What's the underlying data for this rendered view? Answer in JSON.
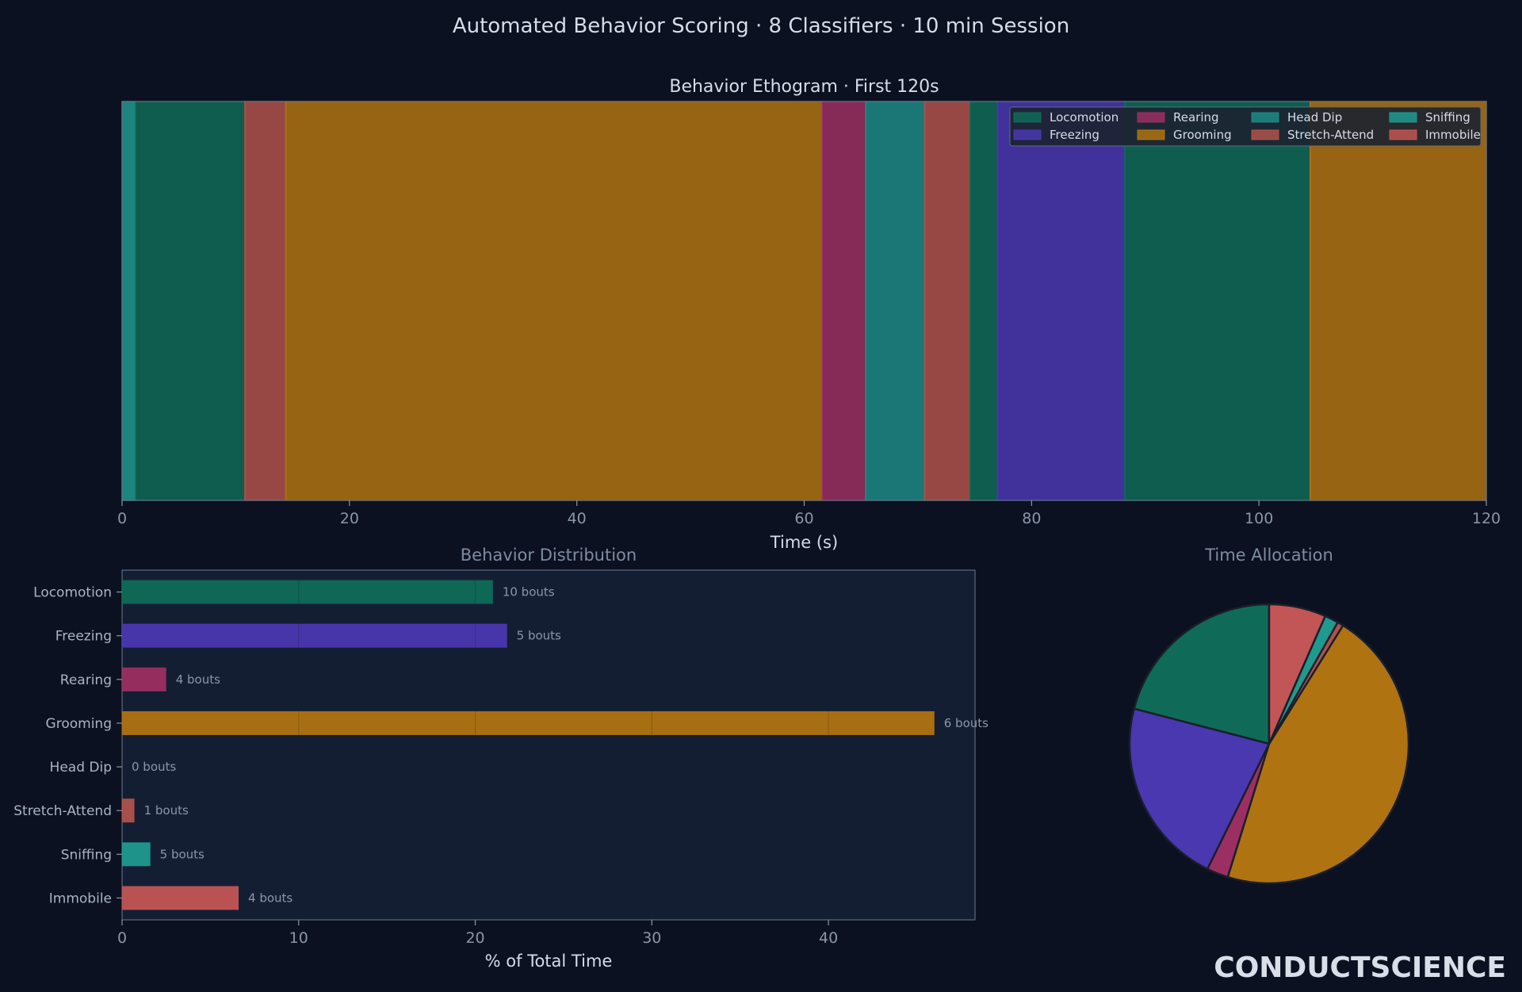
{
  "title": "Automated Behavior Scoring · 8 Classifiers · 10 min Session",
  "logo_text": "CONDUCTSCIENCE",
  "colors": {
    "Locomotion": "#0f6b58",
    "Freezing": "#4a38b0",
    "Rearing": "#9c2f62",
    "Grooming": "#b07312",
    "Head Dip": "#1f8a86",
    "Stretch-Attend": "#b0524c",
    "Sniffing": "#1f9a8f",
    "Immobile": "#c25555"
  },
  "chart_data": [
    {
      "type": "ethogram",
      "title": "Behavior Ethogram · First 120s",
      "xlabel": "Time (s)",
      "xlim": [
        0,
        120
      ],
      "xticks": [
        0,
        20,
        40,
        60,
        80,
        100,
        120
      ],
      "legend": [
        "Locomotion",
        "Freezing",
        "Rearing",
        "Grooming",
        "Head Dip",
        "Stretch-Attend",
        "Sniffing",
        "Immobile"
      ],
      "legend_position": "top-right",
      "segments": [
        {
          "behavior": "Sniffing",
          "start": 0,
          "end": 1.2
        },
        {
          "behavior": "Locomotion",
          "start": 1.2,
          "end": 10.8
        },
        {
          "behavior": "Stretch-Attend",
          "start": 10.8,
          "end": 14.4
        },
        {
          "behavior": "Grooming",
          "start": 14.4,
          "end": 61.6
        },
        {
          "behavior": "Rearing",
          "start": 61.6,
          "end": 65.4
        },
        {
          "behavior": "Head Dip",
          "start": 65.4,
          "end": 70.6
        },
        {
          "behavior": "Stretch-Attend",
          "start": 70.6,
          "end": 74.6
        },
        {
          "behavior": "Locomotion",
          "start": 74.6,
          "end": 77.0
        },
        {
          "behavior": "Freezing",
          "start": 77.0,
          "end": 88.2
        },
        {
          "behavior": "Locomotion",
          "start": 88.2,
          "end": 104.5
        },
        {
          "behavior": "Grooming",
          "start": 104.5,
          "end": 120
        }
      ]
    },
    {
      "type": "bar",
      "orientation": "horizontal",
      "title": "Behavior Distribution",
      "xlabel": "% of Total Time",
      "xlim": [
        0,
        48.3
      ],
      "xticks": [
        0,
        10,
        20,
        30,
        40
      ],
      "categories": [
        "Locomotion",
        "Freezing",
        "Rearing",
        "Grooming",
        "Head Dip",
        "Stretch-Attend",
        "Sniffing",
        "Immobile"
      ],
      "values": [
        21.0,
        21.8,
        2.5,
        46.0,
        0.0,
        0.7,
        1.6,
        6.6
      ],
      "labels": [
        "10 bouts",
        "5 bouts",
        "4 bouts",
        "6 bouts",
        "0 bouts",
        "1 bouts",
        "5 bouts",
        "4 bouts"
      ]
    },
    {
      "type": "pie",
      "title": "Time Allocation",
      "start_angle": 90,
      "direction": "counterclockwise",
      "labels": [
        "Locomotion",
        "Freezing",
        "Rearing",
        "Grooming",
        "Head Dip",
        "Stretch-Attend",
        "Sniffing",
        "Immobile"
      ],
      "values": [
        21.0,
        21.8,
        2.5,
        46.0,
        0.0,
        0.7,
        1.6,
        6.6
      ]
    }
  ]
}
